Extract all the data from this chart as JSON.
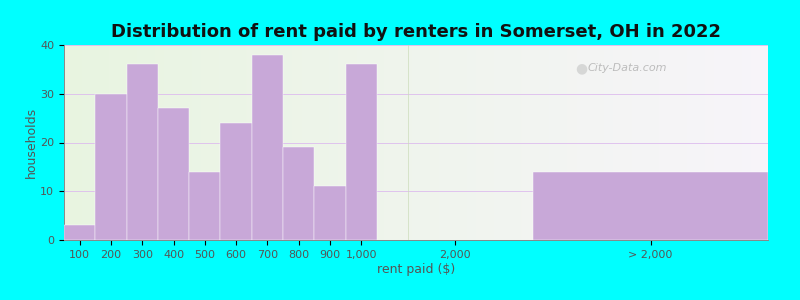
{
  "title": "Distribution of rent paid by renters in Somerset, OH in 2022",
  "xlabel": "rent paid ($)",
  "ylabel": "households",
  "background_color": "#00FFFF",
  "bar_color": "#c8a8d8",
  "ylim": [
    0,
    40
  ],
  "yticks": [
    0,
    10,
    20,
    30,
    40
  ],
  "hist_labels": [
    "100",
    "200",
    "300",
    "400",
    "500",
    "600",
    "700",
    "800",
    "900",
    "1,000"
  ],
  "hist_values": [
    3,
    30,
    36,
    27,
    14,
    24,
    38,
    19,
    11,
    36
  ],
  "special_bar_label": "> 2,000",
  "special_bar_value": 14,
  "mid_label": "2,000",
  "title_fontsize": 13,
  "axis_label_fontsize": 9,
  "tick_fontsize": 8,
  "watermark_text": "City-Data.com"
}
